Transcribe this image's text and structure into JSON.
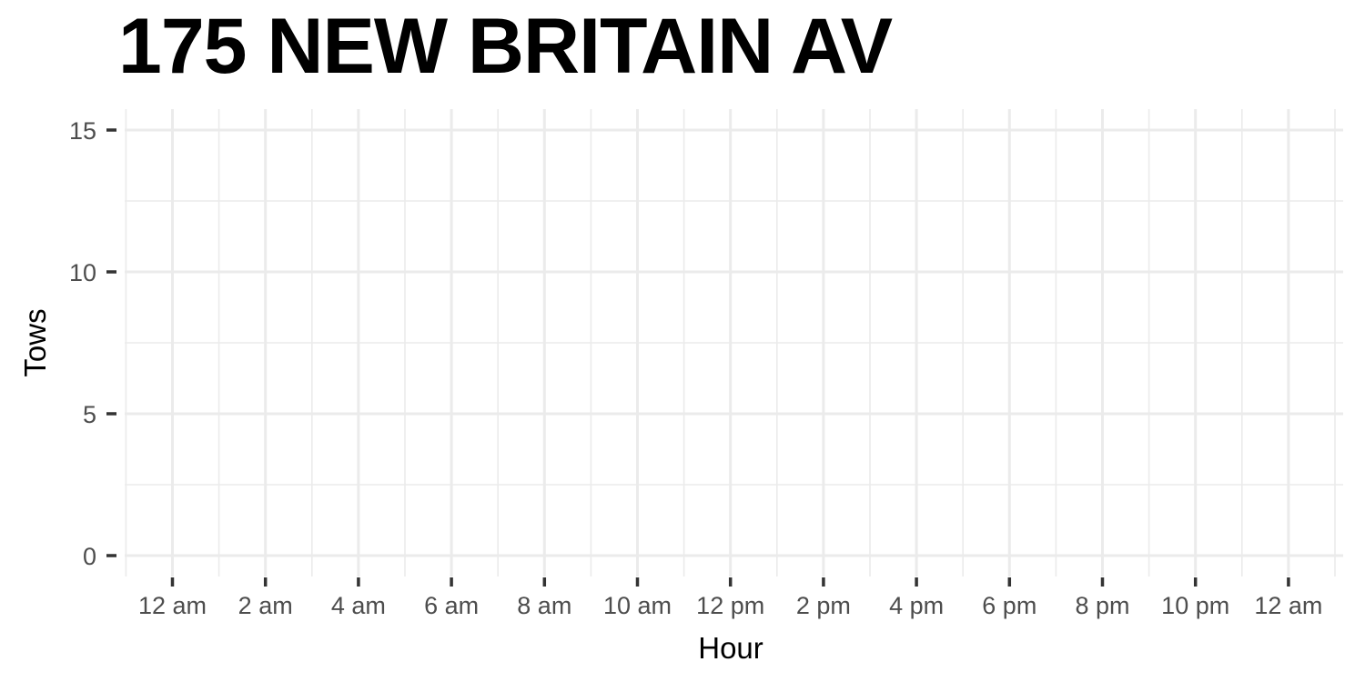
{
  "chart_data": {
    "type": "bar",
    "title": "175 NEW BRITAIN AV",
    "xlabel": "Hour",
    "ylabel": "Tows",
    "x_tick_labels": [
      "12 am",
      "2 am",
      "4 am",
      "6 am",
      "8 am",
      "10 am",
      "12 pm",
      "2 pm",
      "4 pm",
      "6 pm",
      "8 pm",
      "10 pm",
      "12 am"
    ],
    "y_ticks": [
      0,
      5,
      10,
      15
    ],
    "ylim": [
      0,
      15
    ],
    "series": [],
    "grid": true,
    "legend": "none"
  }
}
